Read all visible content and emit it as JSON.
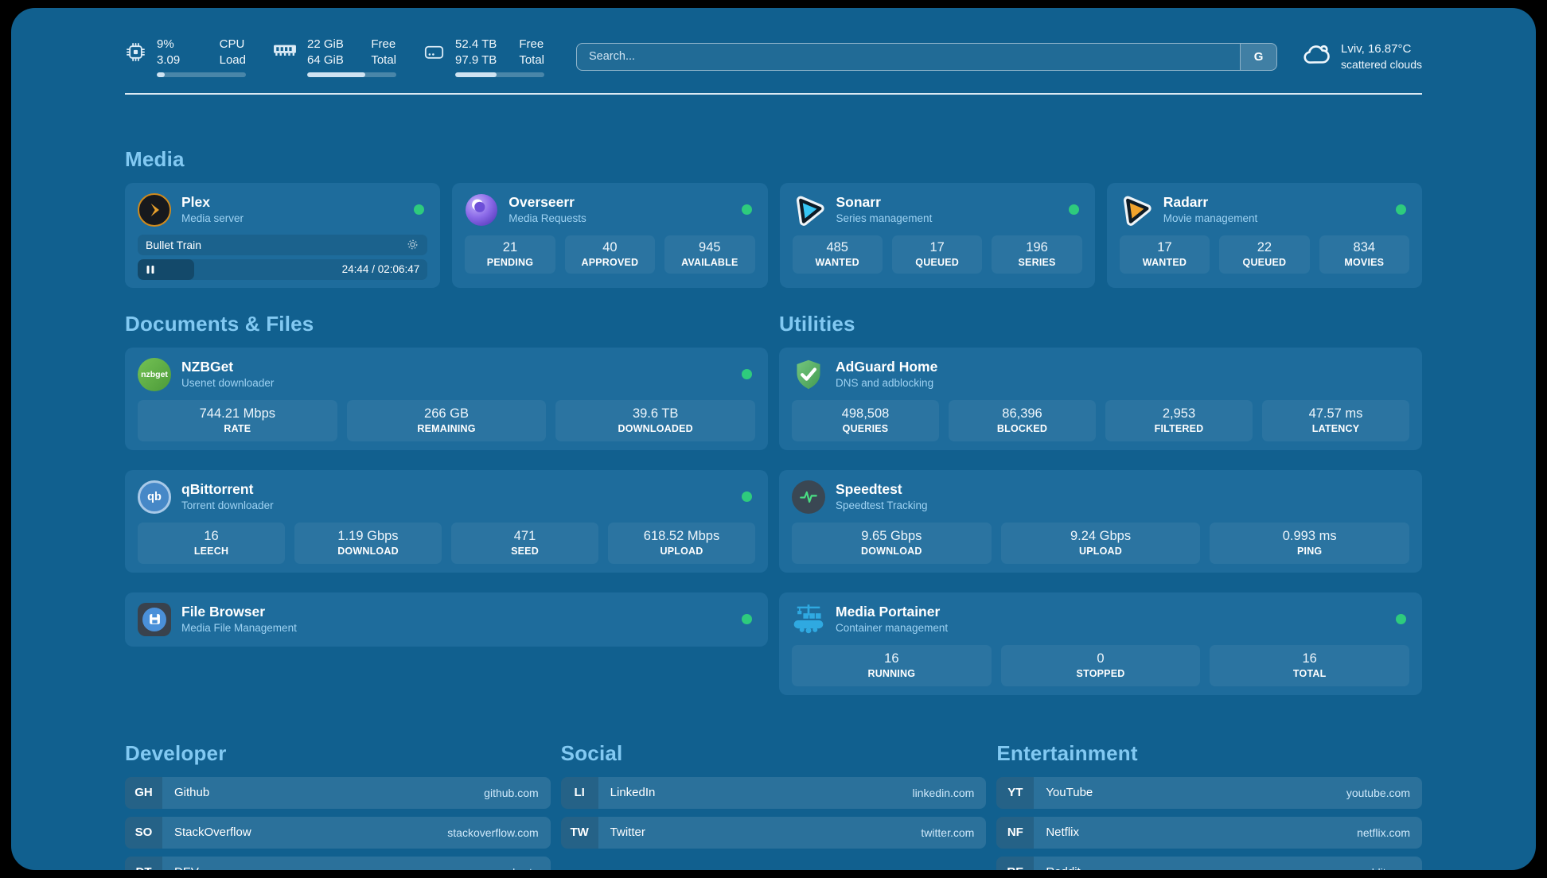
{
  "theme": {
    "background": "#11608f",
    "card": "#1e6c9c",
    "section_title": "#82c9f2",
    "status_online": "#2ecb7d",
    "progress_fill": "#cfe3f2"
  },
  "topbar": {
    "cpu": {
      "icon": "cpu-icon",
      "values": [
        "9%",
        "3.09"
      ],
      "labels": [
        "CPU",
        "Load"
      ],
      "progress_pct": 9
    },
    "memory": {
      "icon": "ram-icon",
      "values": [
        "22 GiB",
        "64 GiB"
      ],
      "labels": [
        "Free",
        "Total"
      ],
      "progress_pct": 65.6
    },
    "disk": {
      "icon": "disk-icon",
      "values": [
        "52.4 TB",
        "97.9 TB"
      ],
      "labels": [
        "Free",
        "Total"
      ],
      "progress_pct": 46.5
    },
    "search": {
      "placeholder": "Search...",
      "button_label": "G"
    },
    "weather": {
      "icon": "cloud-icon",
      "summary": "Lviv, 16.87°C",
      "condition": "scattered clouds"
    }
  },
  "sections": {
    "media": {
      "title": "Media",
      "cards": {
        "plex": {
          "icon": "plex-icon",
          "name": "Plex",
          "description": "Media server",
          "online": true,
          "now_playing": {
            "title": "Bullet Train",
            "time": "24:44 / 02:06:47",
            "progress_pct": 19.5,
            "state": "paused"
          }
        },
        "overseerr": {
          "icon": "overseerr-icon",
          "name": "Overseerr",
          "description": "Media Requests",
          "online": true,
          "stats": [
            {
              "value": "21",
              "label": "PENDING"
            },
            {
              "value": "40",
              "label": "APPROVED"
            },
            {
              "value": "945",
              "label": "AVAILABLE"
            }
          ]
        },
        "sonarr": {
          "icon": "sonarr-icon",
          "name": "Sonarr",
          "description": "Series management",
          "online": true,
          "stats": [
            {
              "value": "485",
              "label": "WANTED"
            },
            {
              "value": "17",
              "label": "QUEUED"
            },
            {
              "value": "196",
              "label": "SERIES"
            }
          ]
        },
        "radarr": {
          "icon": "radarr-icon",
          "name": "Radarr",
          "description": "Movie management",
          "online": true,
          "stats": [
            {
              "value": "17",
              "label": "WANTED"
            },
            {
              "value": "22",
              "label": "QUEUED"
            },
            {
              "value": "834",
              "label": "MOVIES"
            }
          ]
        }
      }
    },
    "documents": {
      "title": "Documents & Files",
      "cards": {
        "nzbget": {
          "icon": "nzbget-icon",
          "name": "NZBGet",
          "description": "Usenet downloader",
          "online": true,
          "stats": [
            {
              "value": "744.21 Mbps",
              "label": "RATE"
            },
            {
              "value": "266 GB",
              "label": "REMAINING"
            },
            {
              "value": "39.6 TB",
              "label": "DOWNLOADED"
            }
          ]
        },
        "qbittorrent": {
          "icon": "qbittorrent-icon",
          "name": "qBittorrent",
          "description": "Torrent downloader",
          "online": true,
          "stats": [
            {
              "value": "16",
              "label": "LEECH"
            },
            {
              "value": "1.19 Gbps",
              "label": "DOWNLOAD"
            },
            {
              "value": "471",
              "label": "SEED"
            },
            {
              "value": "618.52 Mbps",
              "label": "UPLOAD"
            }
          ]
        },
        "filebrowser": {
          "icon": "filebrowser-icon",
          "name": "File Browser",
          "description": "Media File Management",
          "online": true
        }
      }
    },
    "utilities": {
      "title": "Utilities",
      "cards": {
        "adguard": {
          "icon": "adguard-icon",
          "name": "AdGuard Home",
          "description": "DNS and adblocking",
          "stats": [
            {
              "value": "498,508",
              "label": "QUERIES"
            },
            {
              "value": "86,396",
              "label": "BLOCKED"
            },
            {
              "value": "2,953",
              "label": "FILTERED"
            },
            {
              "value": "47.57 ms",
              "label": "LATENCY"
            }
          ]
        },
        "speedtest": {
          "icon": "speedtest-icon",
          "name": "Speedtest",
          "description": "Speedtest Tracking",
          "stats": [
            {
              "value": "9.65 Gbps",
              "label": "DOWNLOAD"
            },
            {
              "value": "9.24 Gbps",
              "label": "UPLOAD"
            },
            {
              "value": "0.993 ms",
              "label": "PING"
            }
          ]
        },
        "portainer": {
          "icon": "portainer-icon",
          "name": "Media Portainer",
          "description": "Container management",
          "online": true,
          "stats": [
            {
              "value": "16",
              "label": "RUNNING"
            },
            {
              "value": "0",
              "label": "STOPPED"
            },
            {
              "value": "16",
              "label": "TOTAL"
            }
          ]
        }
      }
    }
  },
  "link_groups": {
    "developer": {
      "title": "Developer",
      "items": [
        {
          "abbr": "GH",
          "name": "Github",
          "url": "github.com"
        },
        {
          "abbr": "SO",
          "name": "StackOverflow",
          "url": "stackoverflow.com"
        },
        {
          "abbr": "DT",
          "name": "DEV",
          "url": "dev.to"
        }
      ]
    },
    "social": {
      "title": "Social",
      "items": [
        {
          "abbr": "LI",
          "name": "LinkedIn",
          "url": "linkedin.com"
        },
        {
          "abbr": "TW",
          "name": "Twitter",
          "url": "twitter.com"
        }
      ]
    },
    "entertainment": {
      "title": "Entertainment",
      "items": [
        {
          "abbr": "YT",
          "name": "YouTube",
          "url": "youtube.com"
        },
        {
          "abbr": "NF",
          "name": "Netflix",
          "url": "netflix.com"
        },
        {
          "abbr": "RE",
          "name": "Reddit",
          "url": "reddit.com"
        }
      ]
    }
  }
}
